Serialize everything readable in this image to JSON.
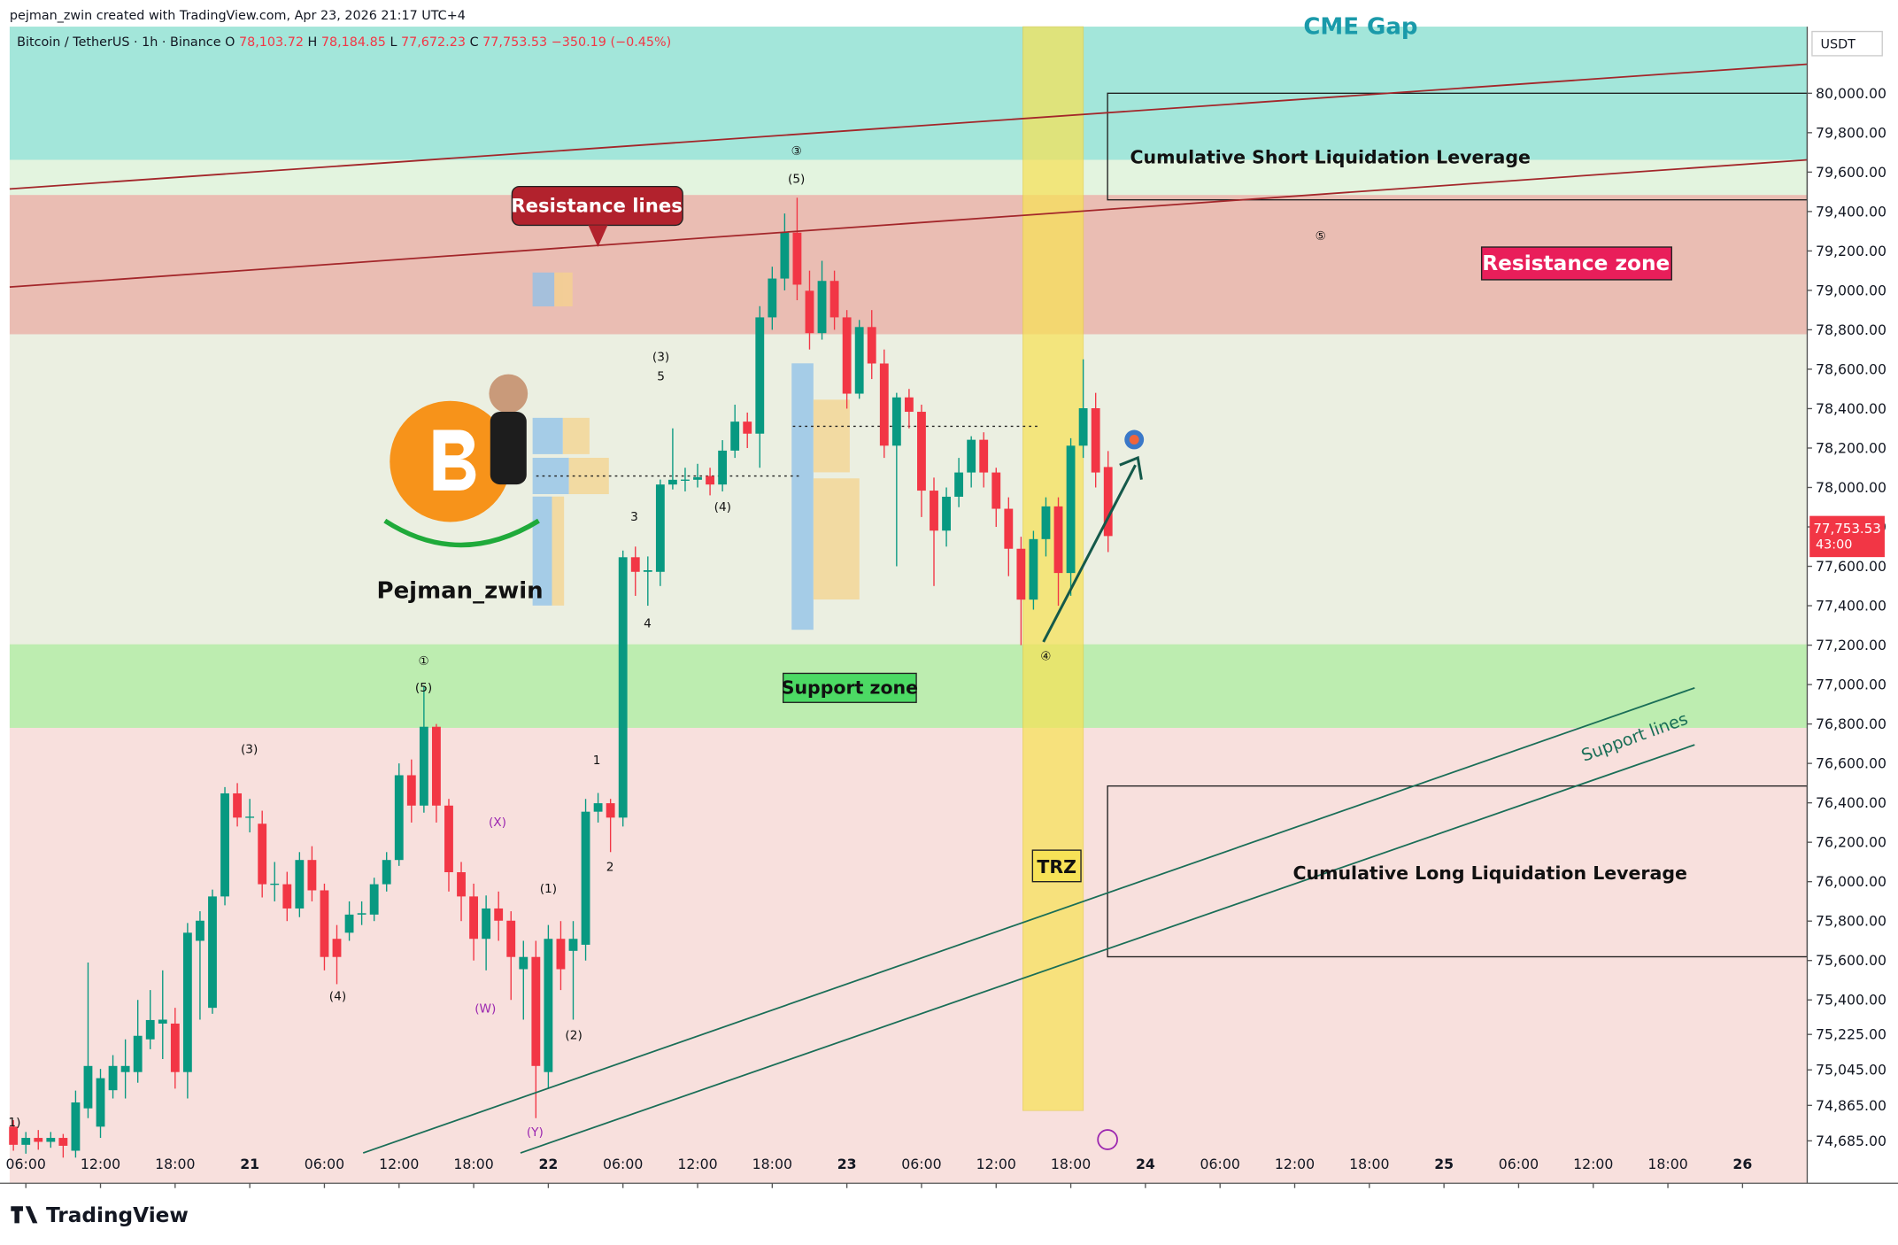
{
  "watermark": "pejman_zwin created with TradingView.com, Apr 23, 2026 21:17 UTC+4",
  "brand": "TradingView",
  "author": "Pejman_zwin",
  "chart_data": {
    "type": "candlestick",
    "ohlc_header": [
      {
        "key": "O",
        "value": "78,103.72"
      },
      {
        "key": "H",
        "value": "78,184.85"
      },
      {
        "key": "L",
        "value": "77,672.23"
      },
      {
        "key": "C",
        "value": "77,753.53"
      }
    ],
    "change": "−350.19 (−0.45%)",
    "currency": "USDT",
    "price_label": "77,753.53",
    "countdown": "43:00",
    "series": [
      {
        "name": "Bitcoin / TetherUS · 1h · Binance",
        "up_color": "#089981",
        "down_color": "#f23645",
        "x": [
          5,
          6,
          7,
          8,
          9,
          10,
          11,
          12,
          13,
          14,
          15,
          16,
          17,
          18,
          19,
          20,
          21,
          22,
          23,
          24,
          25,
          26,
          27,
          28,
          29,
          30,
          31,
          32,
          33,
          34,
          35,
          36,
          37,
          38,
          39,
          40,
          41,
          42,
          43,
          44,
          45,
          46,
          47,
          48,
          49,
          50,
          51,
          52,
          53,
          54,
          55,
          56,
          57,
          58,
          59,
          60,
          61,
          62,
          63,
          64,
          65,
          66,
          67,
          68,
          69,
          70,
          71,
          72,
          73,
          74,
          75,
          76,
          77,
          78,
          79,
          80,
          81,
          82,
          83,
          84,
          85,
          86,
          87,
          88,
          89,
          90,
          91,
          92,
          93
        ],
        "open": [
          74757,
          74665,
          74700,
          74680,
          74700,
          74635,
          74850,
          74757,
          74942,
          75034,
          75034,
          75200,
          75280,
          75280,
          75034,
          75700,
          75360,
          75925,
          76448,
          76325,
          76294,
          75987,
          75987,
          75864,
          76110,
          75956,
          75710,
          75741,
          75833,
          75833,
          75987,
          76110,
          76540,
          76386,
          76786,
          76386,
          76048,
          75925,
          75710,
          75864,
          75802,
          75556,
          75618,
          75034,
          75710,
          75649,
          75680,
          76355,
          76398,
          76325,
          77646,
          77572,
          77572,
          78015,
          78039,
          78039,
          78058,
          78015,
          78187,
          78334,
          78273,
          78863,
          79060,
          79293,
          78998,
          78783,
          79048,
          78863,
          78476,
          78814,
          78629,
          78212,
          78457,
          78384,
          77984,
          77781,
          77953,
          78076,
          78242,
          78076,
          77892,
          77689,
          77431,
          77738,
          77904,
          77566,
          78212,
          78402,
          78103.72
        ],
        "high": [
          74790,
          74730,
          74740,
          74730,
          74720,
          74940,
          75590,
          75050,
          75120,
          75200,
          75400,
          75450,
          75550,
          75360,
          75790,
          75850,
          75960,
          76480,
          76500,
          76420,
          76360,
          76100,
          76050,
          76150,
          76180,
          75990,
          75780,
          75900,
          75900,
          76020,
          76150,
          76600,
          76620,
          76990,
          76800,
          76420,
          76100,
          75990,
          75930,
          75950,
          75850,
          75700,
          75700,
          75780,
          75800,
          75800,
          76420,
          76450,
          76420,
          77680,
          77700,
          77650,
          78040,
          78300,
          78100,
          78120,
          78100,
          78240,
          78420,
          78380,
          78920,
          79120,
          79390,
          79470,
          79100,
          79150,
          79100,
          78900,
          78850,
          78900,
          78700,
          78480,
          78500,
          78420,
          78050,
          78000,
          78150,
          78260,
          78280,
          78100,
          77950,
          77750,
          77780,
          77950,
          77950,
          78250,
          78650,
          78480,
          78184.85
        ],
        "low": [
          74635,
          74620,
          74640,
          74650,
          74600,
          74600,
          74800,
          74700,
          74900,
          74900,
          74980,
          75150,
          75100,
          74950,
          74900,
          75300,
          75330,
          75880,
          76280,
          76250,
          75920,
          75900,
          75800,
          75820,
          75900,
          75550,
          75480,
          75700,
          75780,
          75800,
          75950,
          76080,
          76300,
          76350,
          76300,
          75950,
          75800,
          75600,
          75550,
          75700,
          75400,
          75300,
          74800,
          74950,
          75450,
          75300,
          75600,
          76300,
          76150,
          76280,
          77450,
          77400,
          77500,
          77990,
          77980,
          78000,
          77960,
          77980,
          78150,
          78200,
          78100,
          78800,
          79000,
          78950,
          78700,
          78750,
          78800,
          78400,
          78450,
          78550,
          78150,
          77600,
          78300,
          77850,
          77500,
          77700,
          77900,
          78000,
          78000,
          77800,
          77550,
          77200,
          77380,
          77650,
          77400,
          77450,
          78150,
          78000,
          77672.23
        ],
        "close": [
          74665,
          74700,
          74680,
          74700,
          74660,
          74880,
          75065,
          75003,
          75065,
          75065,
          75218,
          75298,
          75300,
          75034,
          75741,
          75802,
          75925,
          76448,
          76325,
          76330,
          75987,
          75990,
          75864,
          76110,
          75956,
          75618,
          75618,
          75833,
          75840,
          75987,
          76110,
          76540,
          76386,
          76786,
          76386,
          76048,
          75925,
          75710,
          75864,
          75802,
          75618,
          75618,
          75065,
          75710,
          75556,
          75710,
          76355,
          76398,
          76325,
          77646,
          77572,
          77580,
          78015,
          78039,
          78040,
          78052,
          78015,
          78187,
          78334,
          78273,
          78863,
          79060,
          79293,
          79029,
          78783,
          79048,
          78863,
          78476,
          78814,
          78629,
          78212,
          78457,
          78384,
          77984,
          77781,
          77953,
          78076,
          78242,
          78076,
          77892,
          77689,
          77431,
          77738,
          77904,
          77566,
          78212,
          78402,
          78076,
          77753.53
        ]
      }
    ],
    "xlim": [
      4.7,
      149.2
    ],
    "xticks": [
      {
        "value": 6,
        "label": "06:00"
      },
      {
        "value": 12,
        "label": "12:00"
      },
      {
        "value": 18,
        "label": "18:00"
      },
      {
        "value": 24,
        "label": "21"
      },
      {
        "value": 30,
        "label": "06:00"
      },
      {
        "value": 36,
        "label": "12:00"
      },
      {
        "value": 42,
        "label": "18:00"
      },
      {
        "value": 48,
        "label": "22"
      },
      {
        "value": 54,
        "label": "06:00"
      },
      {
        "value": 60,
        "label": "12:00"
      },
      {
        "value": 66,
        "label": "18:00"
      },
      {
        "value": 72,
        "label": "23"
      },
      {
        "value": 78,
        "label": "06:00"
      },
      {
        "value": 84,
        "label": "12:00"
      },
      {
        "value": 90,
        "label": "18:00"
      },
      {
        "value": 96,
        "label": "24"
      },
      {
        "value": 102,
        "label": "06:00"
      },
      {
        "value": 108,
        "label": "12:00"
      },
      {
        "value": 114,
        "label": "18:00"
      },
      {
        "value": 120,
        "label": "25"
      },
      {
        "value": 126,
        "label": "06:00"
      },
      {
        "value": 132,
        "label": "12:00"
      },
      {
        "value": 138,
        "label": "18:00"
      },
      {
        "value": 144,
        "label": "26"
      }
    ],
    "ylim": [
      74470,
      80338
    ],
    "yticks": [
      {
        "value": 80000,
        "label": "80,000.00"
      },
      {
        "value": 79800,
        "label": "79,800.00"
      },
      {
        "value": 79600,
        "label": "79,600.00"
      },
      {
        "value": 79400,
        "label": "79,400.00"
      },
      {
        "value": 79200,
        "label": "79,200.00"
      },
      {
        "value": 79000,
        "label": "79,000.00"
      },
      {
        "value": 78800,
        "label": "78,800.00"
      },
      {
        "value": 78600,
        "label": "78,600.00"
      },
      {
        "value": 78400,
        "label": "78,400.00"
      },
      {
        "value": 78200,
        "label": "78,200.00"
      },
      {
        "value": 78000,
        "label": "78,000.00"
      },
      {
        "value": 77800,
        "label": "77,800.00"
      },
      {
        "value": 77600,
        "label": "77,600.00"
      },
      {
        "value": 77400,
        "label": "77,400.00"
      },
      {
        "value": 77200,
        "label": "77,200.00"
      },
      {
        "value": 77000,
        "label": "77,000.00"
      },
      {
        "value": 76800,
        "label": "76,800.00"
      },
      {
        "value": 76600,
        "label": "76,600.00"
      },
      {
        "value": 76400,
        "label": "76,400.00"
      },
      {
        "value": 76200,
        "label": "76,200.00"
      },
      {
        "value": 76000,
        "label": "76,000.00"
      },
      {
        "value": 75800,
        "label": "75,800.00"
      },
      {
        "value": 75600,
        "label": "75,600.00"
      },
      {
        "value": 75400,
        "label": "75,400.00"
      },
      {
        "value": 75225,
        "label": "75,225.00"
      },
      {
        "value": 75045,
        "label": "75,045.00"
      },
      {
        "value": 74865,
        "label": "74,865.00"
      },
      {
        "value": 74685,
        "label": "74,685.00"
      }
    ],
    "zones": {
      "cme": "CME Gap",
      "short_liq": "Cumulative Short Liquidation Leverage",
      "resistance_lines": "Resistance lines",
      "resistance_zone": "Resistance zone",
      "support_zone": "Support zone",
      "trz": "TRZ",
      "support_lines": "Support lines",
      "long_liq": "Cumulative Long Liquidation Leverage"
    },
    "annotations": [
      "③",
      "(5)",
      "⑤",
      "(3)",
      "5",
      "3",
      "(4)",
      "4",
      "①",
      "(5)",
      "(3)",
      "(4)",
      "(X)",
      "(1)",
      "(W)",
      "(2)",
      "(Y)",
      "1",
      "2",
      "④",
      "1)"
    ]
  }
}
